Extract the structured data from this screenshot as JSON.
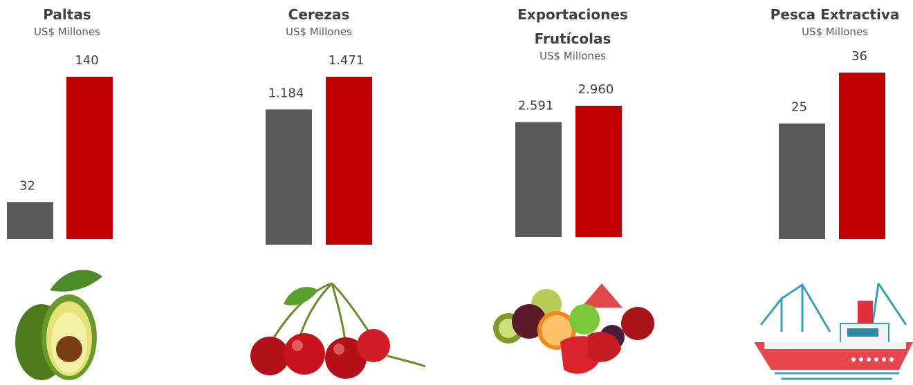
{
  "chart_data": [
    {
      "type": "bar",
      "title": "Paltas",
      "subtitle": "US$ Millones",
      "categories": [
        null,
        null
      ],
      "values": [
        32,
        140
      ],
      "colors": [
        "#595959",
        "#c00000"
      ]
    },
    {
      "type": "bar",
      "title": "Cerezas",
      "subtitle": "US$ Millones",
      "categories": [
        null,
        null
      ],
      "values": [
        1184,
        1471
      ],
      "value_labels": [
        "1.184",
        "1.471"
      ],
      "colors": [
        "#595959",
        "#c00000"
      ]
    },
    {
      "type": "bar",
      "title": "Exportaciones Frutícolas",
      "subtitle": "US$ Millones",
      "categories": [
        null,
        null
      ],
      "values": [
        2591,
        2960
      ],
      "value_labels": [
        "2.591",
        "2.960"
      ],
      "colors": [
        "#595959",
        "#c00000"
      ]
    },
    {
      "type": "bar",
      "title": "Pesca Extractiva",
      "subtitle": "US$ Millones",
      "categories": [
        null,
        null
      ],
      "values": [
        25,
        36
      ],
      "colors": [
        "#595959",
        "#c00000"
      ]
    }
  ]
}
